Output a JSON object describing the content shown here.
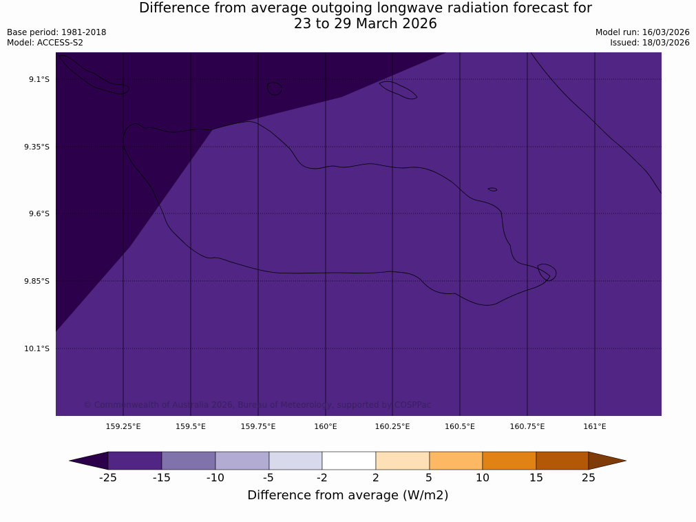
{
  "title": {
    "line1": "Difference from average outgoing longwave radiation forecast for",
    "line2": "23 to 29 March 2026"
  },
  "meta": {
    "base_period": "Base period: 1981-2018",
    "model": "Model: ACCESS-S2",
    "model_run": "Model run: 16/03/2026",
    "issued": "Issued: 18/03/2026"
  },
  "map": {
    "lat_labels": [
      "9.1°S",
      "9.35°S",
      "9.6°S",
      "9.85°S",
      "10.1°S"
    ],
    "lon_labels": [
      "159.25°E",
      "159.5°E",
      "159.75°E",
      "160°E",
      "160.25°E",
      "160.5°E",
      "160.75°E",
      "161°E"
    ],
    "copyright": "© Commonwealth of Australia 2026, Bureau of Meteorology, supported by COSPPac",
    "colors": {
      "main_fill": "#512584",
      "dark_fill": "#2d004b",
      "coastline": "#000000",
      "grid": "#000000"
    }
  },
  "colorbar": {
    "label": "Difference from average (W/m2)",
    "ticks": [
      "-25",
      "-15",
      "-10",
      "-5",
      "-2",
      "2",
      "5",
      "10",
      "15",
      "25"
    ],
    "colors": [
      "#2d004b",
      "#512584",
      "#8073ac",
      "#b2abd2",
      "#d8daeb",
      "#ffffff",
      "#fee0b6",
      "#fdb863",
      "#e08214",
      "#b35806",
      "#7f3b08"
    ]
  }
}
